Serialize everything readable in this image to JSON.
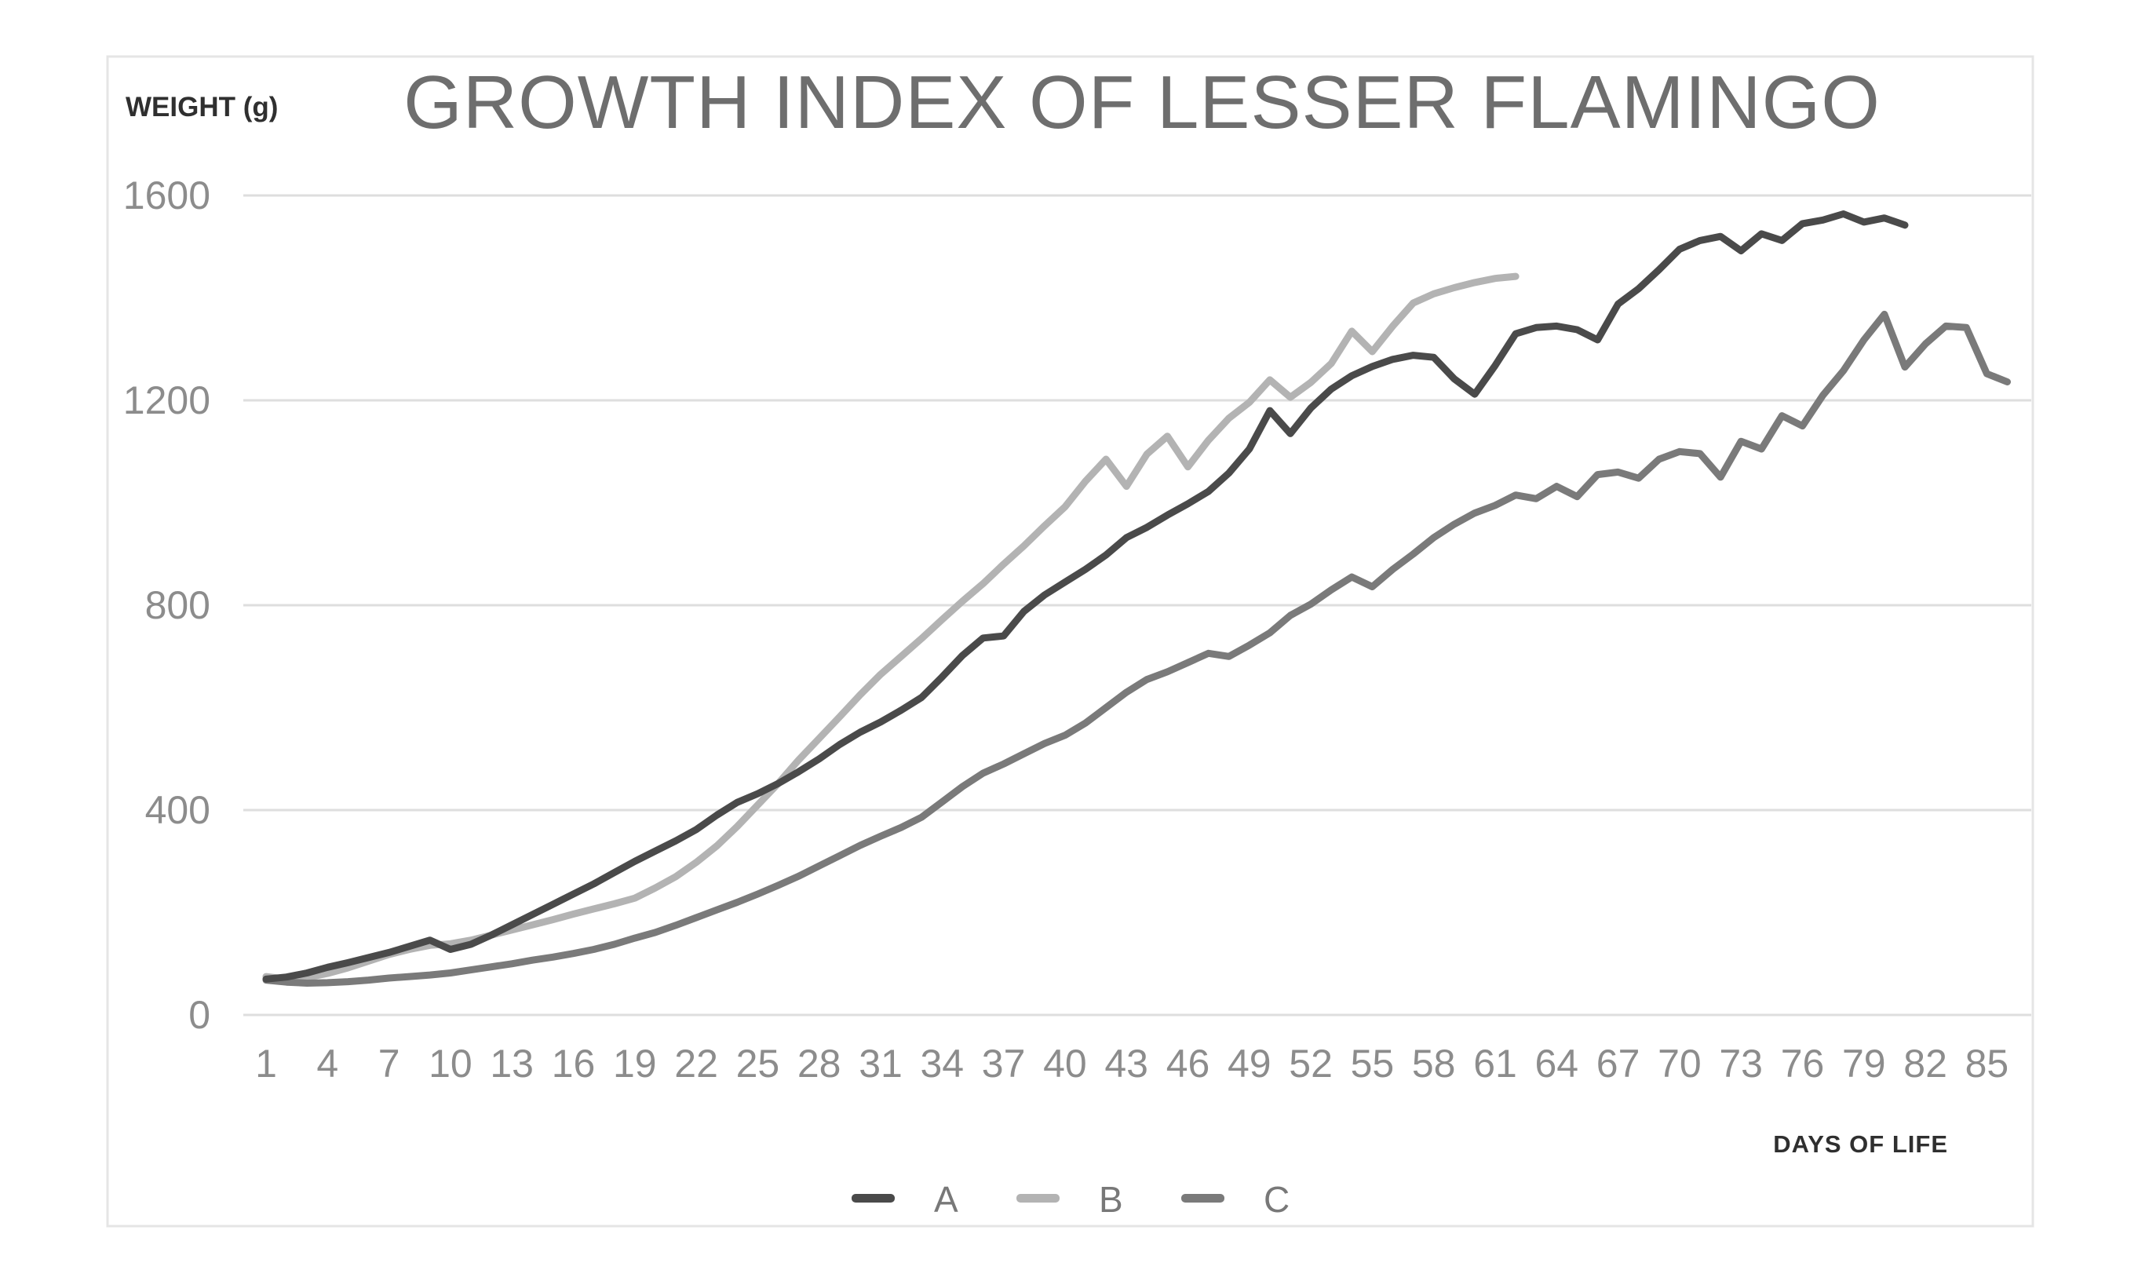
{
  "page": {
    "background": "#ffffff"
  },
  "chart_data": {
    "type": "line",
    "title": "GROWTH INDEX OF LESSER FLAMINGO",
    "ylabel": "WEIGHT (g)",
    "xlabel": "DAYS OF LIFE",
    "ylim": [
      0,
      1600
    ],
    "xlim": [
      1,
      86
    ],
    "yticks": [
      0,
      400,
      800,
      1200,
      1600
    ],
    "xticks": [
      1,
      4,
      7,
      10,
      13,
      16,
      19,
      22,
      25,
      28,
      31,
      34,
      37,
      40,
      43,
      46,
      49,
      52,
      55,
      58,
      61,
      64,
      67,
      70,
      73,
      76,
      79,
      82,
      85
    ],
    "grid": "horizontal",
    "legend_position": "bottom-center",
    "colors": {
      "series_a": "#4a4a4a",
      "series_b": "#b3b3b3",
      "series_c": "#7a7a7a",
      "gridline": "#dedede",
      "frame": "#e5e5e5",
      "tick_text": "#8c8c8c",
      "title_text": "#6e6e6e",
      "strong_text": "#2f2f2f",
      "legend_text": "#787878"
    },
    "series": [
      {
        "name": "A",
        "color": "#4a4a4a",
        "start_day": 1,
        "values": [
          70,
          74,
          82,
          93,
          102,
          112,
          122,
          134,
          146,
          128,
          138,
          156,
          176,
          196,
          216,
          236,
          256,
          278,
          300,
          320,
          340,
          362,
          390,
          415,
          432,
          452,
          475,
          500,
          528,
          552,
          572,
          595,
          620,
          660,
          702,
          736,
          740,
          788,
          820,
          845,
          870,
          898,
          932,
          952,
          976,
          998,
          1022,
          1058,
          1105,
          1180,
          1135,
          1185,
          1222,
          1248,
          1266,
          1280,
          1288,
          1284,
          1242,
          1212,
          1268,
          1330,
          1342,
          1345,
          1338,
          1318,
          1388,
          1418,
          1455,
          1495,
          1512,
          1520,
          1492,
          1525,
          1512,
          1545,
          1552,
          1564,
          1548,
          1556,
          1542
        ]
      },
      {
        "name": "B",
        "color": "#b3b3b3",
        "start_day": 1,
        "values": [
          75,
          70,
          73,
          81,
          92,
          105,
          118,
          128,
          136,
          139,
          146,
          156,
          166,
          176,
          186,
          197,
          207,
          217,
          228,
          248,
          270,
          298,
          330,
          368,
          410,
          452,
          498,
          540,
          582,
          625,
          665,
          700,
          735,
          772,
          808,
          842,
          880,
          916,
          955,
          992,
          1042,
          1085,
          1032,
          1095,
          1130,
          1070,
          1122,
          1165,
          1196,
          1240,
          1206,
          1235,
          1272,
          1335,
          1295,
          1345,
          1390,
          1408,
          1420,
          1430,
          1438,
          1442
        ]
      },
      {
        "name": "C",
        "color": "#7a7a7a",
        "start_day": 1,
        "values": [
          68,
          64,
          62,
          63,
          65,
          68,
          72,
          75,
          78,
          82,
          88,
          94,
          100,
          107,
          113,
          120,
          128,
          138,
          150,
          161,
          175,
          190,
          205,
          220,
          236,
          253,
          271,
          291,
          311,
          331,
          349,
          366,
          386,
          416,
          446,
          472,
          490,
          510,
          530,
          546,
          570,
          600,
          630,
          655,
          670,
          688,
          706,
          700,
          722,
          746,
          780,
          802,
          830,
          855,
          836,
          870,
          900,
          932,
          958,
          980,
          995,
          1015,
          1008,
          1032,
          1012,
          1055,
          1060,
          1048,
          1085,
          1100,
          1096,
          1050,
          1120,
          1105,
          1170,
          1150,
          1210,
          1258,
          1318,
          1368,
          1265,
          1310,
          1345,
          1342,
          1252,
          1236
        ]
      }
    ]
  }
}
